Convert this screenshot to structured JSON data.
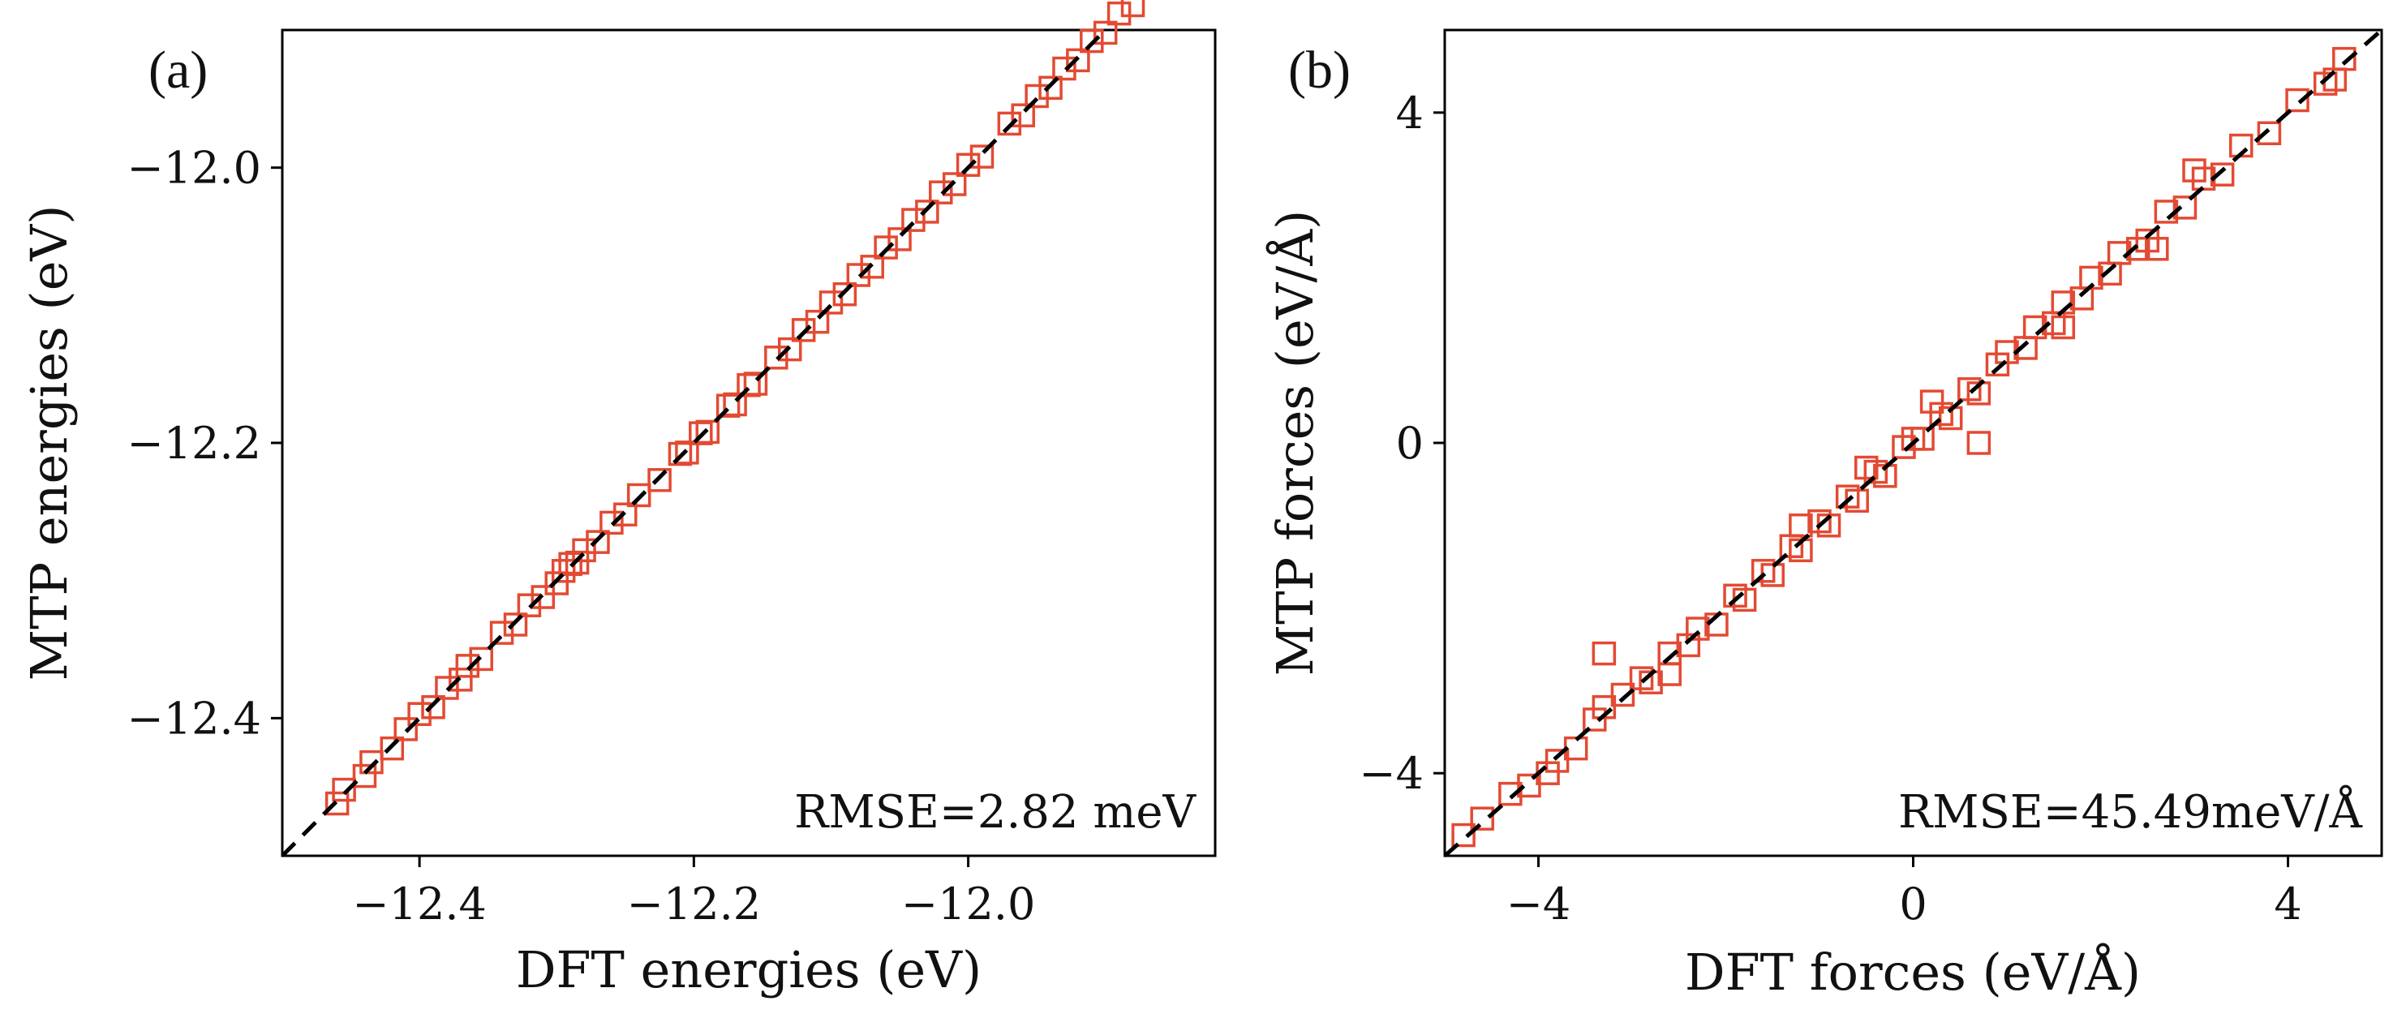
{
  "colors": {
    "marker": "#e34a33",
    "identity_line": "#000000",
    "axes": "#000000",
    "background": "#ffffff"
  },
  "chart_data": [
    {
      "type": "scatter",
      "panel_label": "(a)",
      "xlabel": "DFT energies (eV)",
      "ylabel": "MTP energies (eV)",
      "xlim": [
        -12.5,
        -11.82
      ],
      "ylim": [
        -12.5,
        -11.9
      ],
      "xticks": [
        -12.4,
        -12.2,
        -12.0
      ],
      "xtick_labels": [
        "−12.4",
        "−12.2",
        "−12.0"
      ],
      "yticks": [
        -12.4,
        -12.2,
        -12.0
      ],
      "ytick_labels": [
        "−12.4",
        "−12.2",
        "−12.0"
      ],
      "annotation": "RMSE=2.82 meV",
      "marker": "open-square",
      "reference_line": "y = x (dashed)",
      "series": [
        {
          "name": "MTP vs DFT energies",
          "x": [
            -12.46,
            -12.455,
            -12.44,
            -12.435,
            -12.42,
            -12.41,
            -12.4,
            -12.39,
            -12.38,
            -12.37,
            -12.365,
            -12.355,
            -12.34,
            -12.33,
            -12.32,
            -12.31,
            -12.3,
            -12.295,
            -12.29,
            -12.285,
            -12.28,
            -12.27,
            -12.26,
            -12.25,
            -12.24,
            -12.225,
            -12.21,
            -12.205,
            -12.195,
            -12.19,
            -12.175,
            -12.17,
            -12.16,
            -12.155,
            -12.14,
            -12.13,
            -12.12,
            -12.11,
            -12.1,
            -12.09,
            -12.08,
            -12.07,
            -12.06,
            -12.05,
            -12.04,
            -12.03,
            -12.02,
            -12.01,
            -12.0,
            -11.99,
            -11.97,
            -11.96,
            -11.95,
            -11.94,
            -11.93,
            -11.92,
            -11.91,
            -11.9,
            -11.89,
            -11.88,
            -11.87,
            -11.86,
            -11.85,
            -11.84
          ],
          "y": [
            -12.462,
            -12.452,
            -12.442,
            -12.432,
            -12.422,
            -12.408,
            -12.397,
            -12.392,
            -12.378,
            -12.372,
            -12.362,
            -12.357,
            -12.338,
            -12.332,
            -12.318,
            -12.312,
            -12.302,
            -12.293,
            -12.288,
            -12.287,
            -12.278,
            -12.272,
            -12.258,
            -12.252,
            -12.238,
            -12.227,
            -12.208,
            -12.207,
            -12.193,
            -12.192,
            -12.173,
            -12.172,
            -12.158,
            -12.157,
            -12.138,
            -12.132,
            -12.118,
            -12.112,
            -12.098,
            -12.092,
            -12.078,
            -12.072,
            -12.058,
            -12.052,
            -12.038,
            -12.032,
            -12.018,
            -12.012,
            -11.998,
            -11.992,
            -11.968,
            -11.962,
            -11.948,
            -11.942,
            -11.928,
            -11.922,
            -11.908,
            -11.902,
            -11.888,
            -11.882,
            -11.868,
            -11.862,
            -11.848,
            -11.842
          ]
        }
      ]
    },
    {
      "type": "scatter",
      "panel_label": "(b)",
      "xlabel": "DFT forces (eV/Å)",
      "ylabel": "MTP forces (eV/Å)",
      "xlim": [
        -5,
        5
      ],
      "ylim": [
        -5,
        5
      ],
      "xticks": [
        -4,
        0,
        4
      ],
      "xtick_labels": [
        "−4",
        "0",
        "4"
      ],
      "yticks": [
        -4,
        0,
        4
      ],
      "ytick_labels": [
        "−4",
        "0",
        "4"
      ],
      "annotation": "RMSE=45.49meV/Å",
      "marker": "open-square",
      "reference_line": "y = x (dashed)",
      "series": [
        {
          "name": "MTP vs DFT forces",
          "x": [
            -4.8,
            -4.6,
            -4.3,
            -4.1,
            -3.8,
            -3.6,
            -3.4,
            -3.3,
            -3.1,
            -2.9,
            -2.8,
            -2.6,
            -2.4,
            -2.3,
            -2.1,
            -1.9,
            -1.8,
            -1.6,
            -1.5,
            -1.3,
            -1.2,
            -1.0,
            -0.9,
            -0.7,
            -0.6,
            -0.4,
            -0.3,
            -0.1,
            0.0,
            0.1,
            0.3,
            0.4,
            0.6,
            0.7,
            0.9,
            1.0,
            1.2,
            1.3,
            1.5,
            1.6,
            1.8,
            1.9,
            2.1,
            2.2,
            2.4,
            2.5,
            2.7,
            2.9,
            3.1,
            3.3,
            3.5,
            3.8,
            4.1,
            4.4,
            4.6,
            -3.3,
            0.7,
            2.6,
            -2.6,
            1.6,
            -1.2,
            0.2,
            -0.5,
            3.0,
            -3.9,
            4.5
          ],
          "y": [
            -4.75,
            -4.55,
            -4.25,
            -4.15,
            -3.85,
            -3.7,
            -3.35,
            -3.2,
            -3.05,
            -2.85,
            -2.9,
            -2.55,
            -2.45,
            -2.25,
            -2.2,
            -1.85,
            -1.9,
            -1.55,
            -1.6,
            -1.25,
            -1.3,
            -0.95,
            -1.0,
            -0.65,
            -0.7,
            -0.35,
            -0.4,
            -0.05,
            0.05,
            0.05,
            0.35,
            0.3,
            0.65,
            0.6,
            0.95,
            1.1,
            1.15,
            1.4,
            1.45,
            1.7,
            1.75,
            2.0,
            2.05,
            2.3,
            2.35,
            2.45,
            2.8,
            2.85,
            3.2,
            3.25,
            3.6,
            3.75,
            4.15,
            4.35,
            4.65,
            -2.55,
            0.0,
            2.35,
            -2.8,
            1.4,
            -1.0,
            0.5,
            -0.3,
            3.3,
            -4.0,
            4.4
          ]
        }
      ]
    }
  ]
}
